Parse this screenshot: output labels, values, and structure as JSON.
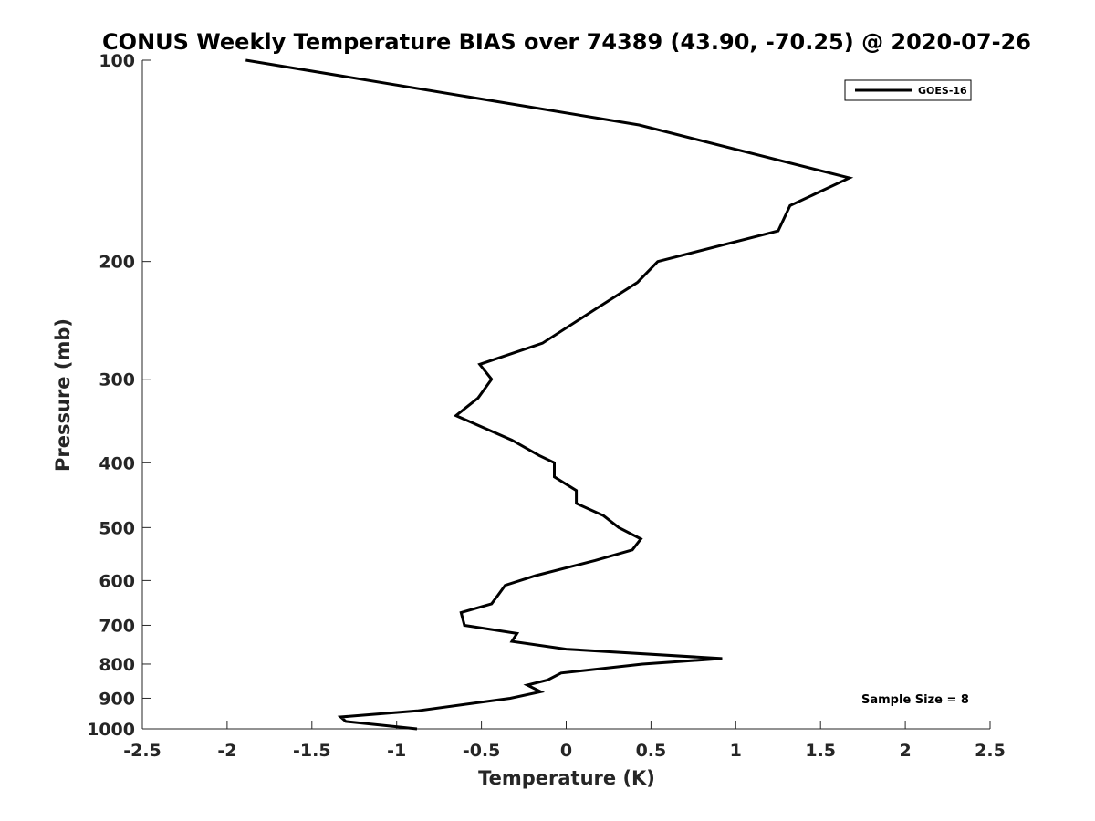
{
  "chart_data": {
    "type": "line",
    "title": "CONUS Weekly Temperature BIAS over 74389 (43.90, -70.25) @ 2020-07-26",
    "xlabel": "Temperature (K)",
    "ylabel": "Pressure (mb)",
    "xlim": [
      -2.5,
      2.5
    ],
    "ylim": [
      100,
      1000
    ],
    "y_scale": "log",
    "y_reversed": true,
    "x_ticks": [
      "-2.5",
      "-2",
      "-1.5",
      "-1",
      "-0.5",
      "0",
      "0.5",
      "1",
      "1.5",
      "2",
      "2.5"
    ],
    "x_tick_values": [
      -2.5,
      -2,
      -1.5,
      -1,
      -0.5,
      0,
      0.5,
      1,
      1.5,
      2,
      2.5
    ],
    "y_ticks": [
      "100",
      "200",
      "300",
      "400",
      "500",
      "600",
      "700",
      "800",
      "900",
      "1000"
    ],
    "y_tick_values": [
      100,
      200,
      300,
      400,
      500,
      600,
      700,
      800,
      900,
      1000
    ],
    "grid": false,
    "legend_position": "top-right",
    "series": [
      {
        "name": "GOES-16",
        "color": "#000000",
        "points": [
          {
            "x": -1.89,
            "y": 100
          },
          {
            "x": 0.43,
            "y": 125
          },
          {
            "x": 1.67,
            "y": 150
          },
          {
            "x": 1.32,
            "y": 165
          },
          {
            "x": 1.25,
            "y": 180
          },
          {
            "x": 0.54,
            "y": 200
          },
          {
            "x": 0.42,
            "y": 215
          },
          {
            "x": 0.18,
            "y": 235
          },
          {
            "x": -0.14,
            "y": 265
          },
          {
            "x": -0.51,
            "y": 285
          },
          {
            "x": -0.44,
            "y": 300
          },
          {
            "x": -0.52,
            "y": 320
          },
          {
            "x": -0.65,
            "y": 340
          },
          {
            "x": -0.32,
            "y": 370
          },
          {
            "x": -0.16,
            "y": 390
          },
          {
            "x": -0.07,
            "y": 400
          },
          {
            "x": -0.07,
            "y": 420
          },
          {
            "x": 0.06,
            "y": 440
          },
          {
            "x": 0.06,
            "y": 460
          },
          {
            "x": 0.22,
            "y": 480
          },
          {
            "x": 0.31,
            "y": 500
          },
          {
            "x": 0.44,
            "y": 520
          },
          {
            "x": 0.39,
            "y": 540
          },
          {
            "x": 0.17,
            "y": 560
          },
          {
            "x": -0.18,
            "y": 590
          },
          {
            "x": -0.36,
            "y": 610
          },
          {
            "x": -0.4,
            "y": 630
          },
          {
            "x": -0.44,
            "y": 650
          },
          {
            "x": -0.62,
            "y": 670
          },
          {
            "x": -0.6,
            "y": 700
          },
          {
            "x": -0.29,
            "y": 720
          },
          {
            "x": -0.32,
            "y": 740
          },
          {
            "x": 0.0,
            "y": 760
          },
          {
            "x": 0.92,
            "y": 785
          },
          {
            "x": 0.45,
            "y": 800
          },
          {
            "x": -0.03,
            "y": 825
          },
          {
            "x": -0.11,
            "y": 845
          },
          {
            "x": -0.23,
            "y": 860
          },
          {
            "x": -0.15,
            "y": 880
          },
          {
            "x": -0.33,
            "y": 900
          },
          {
            "x": -0.88,
            "y": 940
          },
          {
            "x": -1.33,
            "y": 960
          },
          {
            "x": -1.3,
            "y": 975
          },
          {
            "x": -0.88,
            "y": 1000
          }
        ]
      }
    ],
    "annotations": [
      {
        "text": "Sample Size = 8",
        "position": "bottom-right"
      }
    ]
  }
}
